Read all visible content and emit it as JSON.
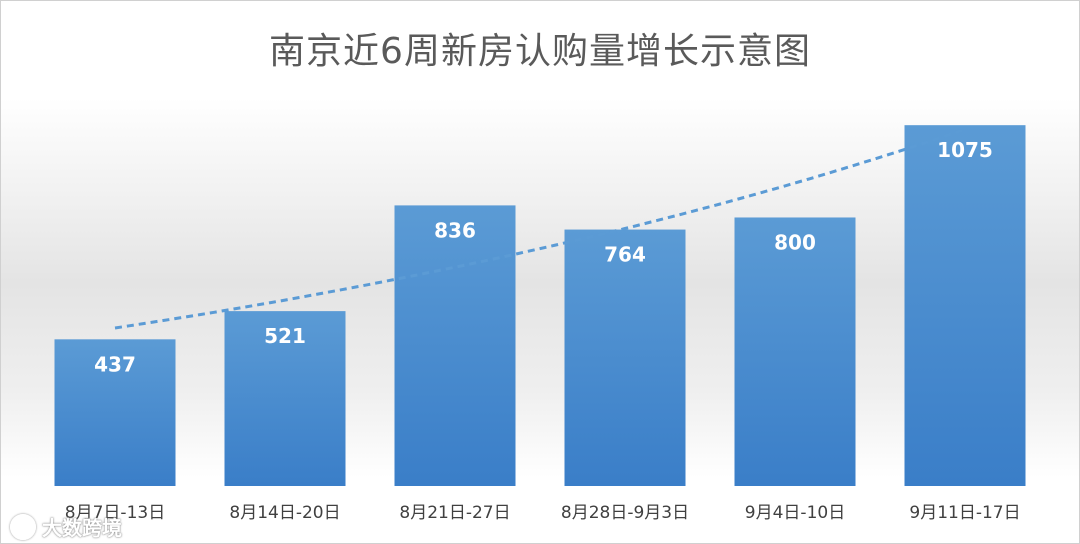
{
  "chart_data": {
    "type": "bar",
    "title": "南京近6周新房认购量增长示意图",
    "categories": [
      "8月7日-13日",
      "8月14日-20日",
      "8月21日-27日",
      "8月28日-9月3日",
      "9月4日-10日",
      "9月11日-17日"
    ],
    "values": [
      437,
      521,
      836,
      764,
      800,
      1075
    ],
    "ylim": [
      0,
      1150
    ],
    "xlabel": "",
    "ylabel": "",
    "grid": false,
    "legend": "none",
    "trendline": {
      "type": "exponential",
      "style": "dashed",
      "color": "#5b9bd5"
    },
    "colors": {
      "bar_top": "#5b9bd5",
      "bar_bottom": "#3a7ec8",
      "label": "#ffffff",
      "tick": "#404040"
    }
  },
  "watermark": {
    "text": "大数跨境",
    "icon": "logo-circle-icon"
  }
}
